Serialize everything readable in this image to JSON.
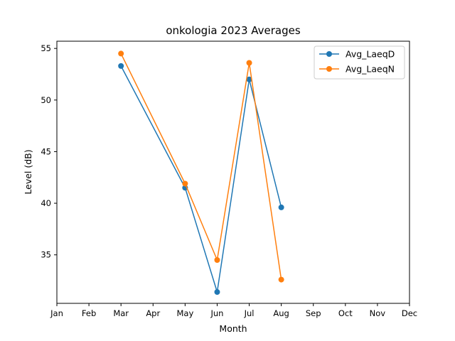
{
  "chart_data": {
    "type": "line",
    "title": "onkologia 2023 Averages",
    "xlabel": "Month",
    "ylabel": "Level (dB)",
    "categories": [
      "Jan",
      "Feb",
      "Mar",
      "Apr",
      "May",
      "Jun",
      "Jul",
      "Aug",
      "Sep",
      "Oct",
      "Nov",
      "Dec"
    ],
    "yticks": [
      35,
      40,
      45,
      50,
      55
    ],
    "ylim": [
      30.3,
      55.7
    ],
    "legend_position": "top-right",
    "grid": false,
    "series": [
      {
        "name": "Avg_LaeqD",
        "color": "#1f77b4",
        "points": [
          [
            "Mar",
            53.3
          ],
          [
            "May",
            41.5
          ],
          [
            "Jun",
            31.4
          ],
          [
            "Jul",
            52.0
          ],
          [
            "Aug",
            39.6
          ]
        ]
      },
      {
        "name": "Avg_LaeqN",
        "color": "#ff7f0e",
        "points": [
          [
            "Mar",
            54.5
          ],
          [
            "May",
            41.9
          ],
          [
            "Jun",
            34.5
          ],
          [
            "Jul",
            53.6
          ],
          [
            "Aug",
            32.6
          ]
        ]
      }
    ]
  }
}
